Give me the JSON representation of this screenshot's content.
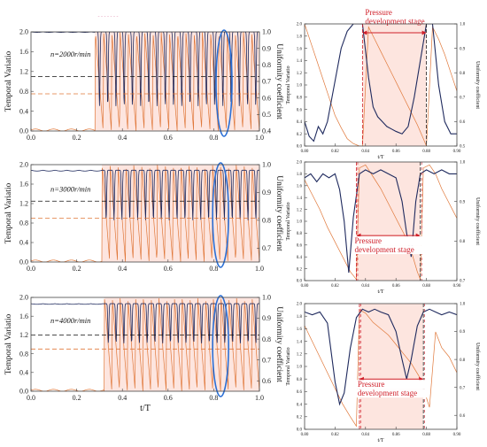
{
  "figure": {
    "colors": {
      "orange": "#e0783a",
      "navy": "#1f2a5e",
      "red": "#d0202a",
      "blue": "#2a6fd6",
      "pink_band": "#fde5df",
      "axis": "#444444",
      "grid_zero": "#444444"
    },
    "caption_note": "- - - - - - -"
  },
  "chart_data": [
    {
      "id": "left-top",
      "type": "line",
      "xlabel": "",
      "ylabel": "Temporal Variatio",
      "y2label": "Uniformity coefficient",
      "xlim": [
        0,
        1
      ],
      "ylim": [
        0,
        2
      ],
      "y2lim": [
        0.4,
        1.0
      ],
      "xticks": [
        0.0,
        0.2,
        0.4,
        0.6,
        0.8,
        1.0
      ],
      "xtick_labels": [
        "0.0",
        "0.2",
        "0.4",
        "0.6",
        "0.8",
        "1.0"
      ],
      "yticks": [
        0,
        0.4,
        0.8,
        1.2,
        1.6,
        2.0
      ],
      "ytick_labels": [
        "0.0",
        "0.4",
        "0.8",
        "1.2",
        "1.6",
        "2.0"
      ],
      "y2ticks": [
        0.4,
        0.5,
        0.6,
        0.7,
        0.8,
        0.9,
        1.0
      ],
      "y2tick_labels": [
        "0.4",
        "0.5",
        "0.6",
        "0.7",
        "0.8",
        "0.9",
        "1.0"
      ],
      "annotation": "n=2000r/min",
      "onset": 0.28,
      "cycles": 20,
      "highlight_x": 0.845,
      "ref_lines": {
        "navy": 1.1,
        "orange": 0.75
      },
      "series": [
        {
          "role": "temporal",
          "steady": 0.0,
          "peak": 2.0,
          "trough": 0.0
        },
        {
          "role": "uniformity",
          "steady": 1.0,
          "peak": 1.0,
          "trough": 0.55
        }
      ]
    },
    {
      "id": "left-middle",
      "type": "line",
      "xlabel": "",
      "ylabel": "Temporal Variatio",
      "y2label": "Uniformity coefficient",
      "xlim": [
        0,
        1
      ],
      "ylim": [
        0,
        2
      ],
      "y2lim": [
        0.65,
        1.0
      ],
      "xticks": [
        0.0,
        0.2,
        0.4,
        0.6,
        0.8,
        1.0
      ],
      "xtick_labels": [
        "0.0",
        "0.2",
        "0.4",
        "0.6",
        "0.8",
        "1.0"
      ],
      "yticks": [
        0,
        0.4,
        0.8,
        1.2,
        1.6,
        2.0
      ],
      "ytick_labels": [
        "0.0",
        "0.4",
        "0.8",
        "1.2",
        "1.6",
        "2.0"
      ],
      "y2ticks": [
        0.7,
        0.8,
        0.9,
        1.0
      ],
      "y2tick_labels": [
        "0.7",
        "0.8",
        "0.9",
        "1.0"
      ],
      "annotation": "n=3000r/min",
      "onset": 0.31,
      "cycles": 20,
      "highlight_x": 0.83,
      "ref_lines": {
        "navy": 1.25,
        "orange": 0.9
      },
      "series": [
        {
          "role": "temporal",
          "steady": 0.0,
          "peak": 2.0,
          "trough": 0.0
        },
        {
          "role": "uniformity",
          "steady": 0.98,
          "peak": 0.98,
          "trough": 0.8
        }
      ]
    },
    {
      "id": "left-bottom",
      "type": "line",
      "xlabel": "t/T",
      "ylabel": "Temporal Variatio",
      "y2label": "Uniformity coefficient",
      "xlim": [
        0,
        1
      ],
      "ylim": [
        0,
        2
      ],
      "y2lim": [
        0.55,
        1.0
      ],
      "xticks": [
        0.0,
        0.2,
        0.4,
        0.6,
        0.8,
        1.0
      ],
      "xtick_labels": [
        "0.0",
        "0.2",
        "0.4",
        "0.6",
        "0.8",
        "1.0"
      ],
      "yticks": [
        0,
        0.4,
        0.8,
        1.2,
        1.6,
        2.0
      ],
      "ytick_labels": [
        "0.0",
        "0.4",
        "0.8",
        "1.2",
        "1.6",
        "2.0"
      ],
      "y2ticks": [
        0.6,
        0.7,
        0.8,
        0.9,
        1.0
      ],
      "y2tick_labels": [
        "0.6",
        "0.7",
        "0.8",
        "0.9",
        "1.0"
      ],
      "annotation": "n=4000r/min",
      "onset": 0.32,
      "cycles": 20,
      "highlight_x": 0.83,
      "ref_lines": {
        "navy": 1.2,
        "orange": 0.9
      },
      "series": [
        {
          "role": "temporal",
          "steady": 0.0,
          "peak": 2.0,
          "trough": 0.0
        },
        {
          "role": "uniformity",
          "steady": 0.97,
          "peak": 0.97,
          "trough": 0.78
        }
      ]
    },
    {
      "id": "right-top",
      "type": "line",
      "xlabel": "t/T",
      "ylabel": "Temporal Variatio",
      "y2label": "Uniformity coefficient",
      "xlim": [
        0.8,
        0.9
      ],
      "ylim": [
        0,
        2
      ],
      "y2lim": [
        0.5,
        1.0
      ],
      "xticks": [
        0.8,
        0.82,
        0.84,
        0.86,
        0.88,
        0.9
      ],
      "xtick_labels": [
        "0.80",
        "0.82",
        "0.84",
        "0.86",
        "0.88",
        "0.90"
      ],
      "yticks": [
        0,
        0.2,
        0.4,
        0.6,
        0.8,
        1.0,
        1.2,
        1.4,
        1.6,
        1.8,
        2.0
      ],
      "ytick_labels": [
        "0.0",
        "0.2",
        "0.4",
        "0.6",
        "0.8",
        "1.0",
        "1.2",
        "1.4",
        "1.6",
        "1.8",
        "2.0"
      ],
      "y2ticks": [
        0.5,
        0.6,
        0.7,
        0.8,
        0.9,
        1.0
      ],
      "y2tick_labels": [
        "0.5",
        "0.6",
        "0.7",
        "0.8",
        "0.9",
        "1.0"
      ],
      "stage_label": [
        "Pressure",
        "development stage"
      ],
      "stage_range": [
        0.838,
        0.88
      ],
      "series": [
        {
          "role": "temporal",
          "x": [
            0.8,
            0.804,
            0.808,
            0.812,
            0.816,
            0.82,
            0.824,
            0.828,
            0.832,
            0.836,
            0.838,
            0.842,
            0.846,
            0.85,
            0.854,
            0.858,
            0.862,
            0.866,
            0.87,
            0.874,
            0.878,
            0.88,
            0.884,
            0.888,
            0.892,
            0.896,
            0.9
          ],
          "y": [
            2.0,
            1.7,
            1.4,
            1.1,
            0.8,
            0.5,
            0.3,
            0.12,
            0.04,
            0.0,
            0.0,
            1.95,
            1.75,
            1.55,
            1.35,
            1.15,
            0.95,
            0.75,
            0.55,
            0.35,
            0.12,
            0.0,
            1.95,
            1.75,
            1.5,
            1.2,
            0.9
          ]
        },
        {
          "role": "uniformity",
          "x": [
            0.8,
            0.803,
            0.806,
            0.809,
            0.812,
            0.815,
            0.818,
            0.821,
            0.824,
            0.828,
            0.832,
            0.836,
            0.838,
            0.842,
            0.845,
            0.848,
            0.851,
            0.854,
            0.857,
            0.86,
            0.864,
            0.868,
            0.872,
            0.876,
            0.88,
            0.884,
            0.888,
            0.892,
            0.896,
            0.9
          ],
          "y": [
            0.6,
            0.54,
            0.52,
            0.58,
            0.55,
            0.6,
            0.7,
            0.8,
            0.9,
            0.97,
            1.0,
            1.0,
            1.0,
            0.78,
            0.66,
            0.62,
            0.6,
            0.58,
            0.57,
            0.56,
            0.55,
            0.58,
            0.7,
            0.85,
            1.0,
            1.0,
            0.75,
            0.6,
            0.55,
            0.55
          ]
        }
      ]
    },
    {
      "id": "right-middle",
      "type": "line",
      "xlabel": "t/T",
      "ylabel": "Temporal Variatio",
      "y2label": "Uniformity coefficient",
      "xlim": [
        0.8,
        0.9
      ],
      "ylim": [
        0,
        2
      ],
      "y2lim": [
        0.7,
        1.0
      ],
      "xticks": [
        0.8,
        0.82,
        0.84,
        0.86,
        0.88,
        0.9
      ],
      "xtick_labels": [
        "0.80",
        "0.82",
        "0.84",
        "0.86",
        "0.88",
        "0.90"
      ],
      "yticks": [
        0,
        0.2,
        0.4,
        0.6,
        0.8,
        1.0,
        1.2,
        1.4,
        1.6,
        1.8,
        2.0
      ],
      "ytick_labels": [
        "0.0",
        "0.2",
        "0.4",
        "0.6",
        "0.8",
        "1.0",
        "1.2",
        "1.4",
        "1.6",
        "1.8",
        "2.0"
      ],
      "y2ticks": [
        0.7,
        0.8,
        0.9,
        1.0
      ],
      "y2tick_labels": [
        "0.7",
        "0.8",
        "0.9",
        "1.0"
      ],
      "stage_label": [
        "Pressure",
        "development stage"
      ],
      "stage_range": [
        0.834,
        0.876
      ],
      "series": [
        {
          "role": "temporal",
          "x": [
            0.8,
            0.805,
            0.81,
            0.815,
            0.82,
            0.825,
            0.83,
            0.834,
            0.836,
            0.84,
            0.845,
            0.85,
            0.855,
            0.86,
            0.865,
            0.87,
            0.874,
            0.876,
            0.878,
            0.882,
            0.886,
            0.89,
            0.895,
            0.9
          ],
          "y": [
            1.7,
            1.45,
            1.2,
            0.9,
            0.65,
            0.4,
            0.15,
            0.02,
            1.9,
            1.95,
            1.75,
            1.55,
            1.3,
            1.05,
            0.8,
            0.5,
            0.15,
            0.02,
            1.9,
            1.95,
            1.8,
            1.55,
            1.3,
            1.05
          ]
        },
        {
          "role": "uniformity",
          "x": [
            0.8,
            0.804,
            0.808,
            0.812,
            0.816,
            0.82,
            0.823,
            0.826,
            0.829,
            0.832,
            0.836,
            0.84,
            0.845,
            0.85,
            0.855,
            0.86,
            0.864,
            0.867,
            0.87,
            0.873,
            0.876,
            0.88,
            0.885,
            0.89,
            0.895,
            0.9
          ],
          "y": [
            0.96,
            0.97,
            0.95,
            0.97,
            0.96,
            0.97,
            0.93,
            0.85,
            0.72,
            0.86,
            0.97,
            0.98,
            0.97,
            0.98,
            0.97,
            0.96,
            0.9,
            0.82,
            0.76,
            0.9,
            0.97,
            0.98,
            0.97,
            0.98,
            0.97,
            0.97
          ]
        }
      ]
    },
    {
      "id": "right-bottom",
      "type": "line",
      "xlabel": "t/T",
      "ylabel": "Temporal Variatio",
      "y2label": "Uniformity coefficient",
      "xlim": [
        0.8,
        0.9
      ],
      "ylim": [
        0,
        2
      ],
      "y2lim": [
        0.55,
        1.0
      ],
      "xticks": [
        0.8,
        0.82,
        0.84,
        0.86,
        0.88,
        0.9
      ],
      "xtick_labels": [
        "0.80",
        "0.82",
        "0.84",
        "0.86",
        "0.88",
        "0.90"
      ],
      "yticks": [
        0,
        0.2,
        0.4,
        0.6,
        0.8,
        1.0,
        1.2,
        1.4,
        1.6,
        1.8,
        2.0
      ],
      "ytick_labels": [
        "0.0",
        "0.2",
        "0.4",
        "0.6",
        "0.8",
        "1.0",
        "1.2",
        "1.4",
        "1.6",
        "1.8",
        "2.0"
      ],
      "y2ticks": [
        0.6,
        0.7,
        0.8,
        0.9,
        1.0
      ],
      "y2tick_labels": [
        "0.6",
        "0.7",
        "0.8",
        "0.9",
        "1.0"
      ],
      "stage_label": [
        "Pressure",
        "development stage"
      ],
      "stage_range": [
        0.836,
        0.878
      ],
      "series": [
        {
          "role": "temporal",
          "x": [
            0.8,
            0.805,
            0.81,
            0.815,
            0.82,
            0.825,
            0.83,
            0.834,
            0.836,
            0.84,
            0.845,
            0.85,
            0.855,
            0.86,
            0.865,
            0.87,
            0.875,
            0.878,
            0.882,
            0.886,
            0.89,
            0.895,
            0.9
          ],
          "y": [
            1.65,
            1.4,
            1.15,
            0.9,
            0.65,
            0.4,
            0.2,
            0.05,
            1.9,
            1.85,
            1.7,
            1.6,
            1.5,
            1.35,
            1.2,
            1.05,
            0.85,
            0.65,
            0.35,
            1.55,
            1.3,
            1.15,
            0.9
          ]
        },
        {
          "role": "uniformity",
          "x": [
            0.8,
            0.805,
            0.81,
            0.815,
            0.82,
            0.823,
            0.826,
            0.83,
            0.834,
            0.838,
            0.842,
            0.846,
            0.85,
            0.855,
            0.86,
            0.864,
            0.867,
            0.87,
            0.874,
            0.878,
            0.882,
            0.886,
            0.89,
            0.895,
            0.9
          ],
          "y": [
            0.97,
            0.96,
            0.97,
            0.93,
            0.72,
            0.64,
            0.68,
            0.84,
            0.95,
            0.98,
            0.97,
            0.98,
            0.97,
            0.96,
            0.9,
            0.8,
            0.73,
            0.8,
            0.92,
            0.97,
            0.98,
            0.97,
            0.96,
            0.97,
            0.96
          ]
        }
      ]
    }
  ]
}
